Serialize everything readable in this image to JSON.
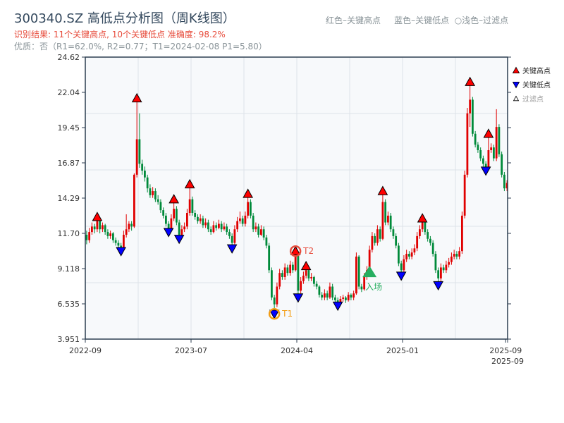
{
  "header": {
    "title": "300340.SZ 高低点分析图（周K线图）",
    "result": "识别结果: 11个关键高点, 10个关键低点  准确度: 98.2%",
    "quality": "优质：否（R1=62.0%, R2=0.77；T1=2024-02-08 P1=5.80）",
    "hint": "红色–关键高点     蓝色–关键低点  ○浅色–过滤点"
  },
  "colors": {
    "up": "#e00000",
    "down": "#008a3a",
    "high_marker": "#ff0000",
    "low_marker": "#0000ff",
    "t1": "#f39c12",
    "t2": "#e74c3c",
    "entry": "#27ae60",
    "axis": "#2c3e50",
    "plot_bg": "#f7f9fb",
    "grid": "#dde3e8"
  },
  "chart_data": {
    "type": "candlestick",
    "title": "300340.SZ 高低点分析图（周K线图）",
    "ylim": [
      3.951,
      24.62
    ],
    "y_ticks": [
      "3.951",
      "6.535",
      "9.118",
      "11.70",
      "14.29",
      "16.87",
      "19.45",
      "22.04",
      "24.62"
    ],
    "x_ticks": [
      {
        "index": 0,
        "label": "2022-09"
      },
      {
        "index": 40,
        "label": "2023-07"
      },
      {
        "index": 80,
        "label": "2024-04"
      },
      {
        "index": 120,
        "label": "2025-01"
      },
      {
        "index": 159,
        "label": "2025-09"
      },
      {
        "index": 160,
        "label": "2025-09"
      }
    ],
    "grid": true,
    "legend": {
      "placement": "top-right",
      "items": [
        {
          "label": "关键高点",
          "marker": "red-up-triangle"
        },
        {
          "label": "关键低点",
          "marker": "blue-down-triangle"
        },
        {
          "label": "过滤点",
          "marker": "hollow-up-triangle"
        }
      ]
    },
    "ohlc": [
      [
        11.6,
        11.9,
        10.9,
        11.2
      ],
      [
        11.2,
        12.1,
        11.0,
        11.8
      ],
      [
        11.8,
        12.5,
        11.6,
        12.2
      ],
      [
        12.2,
        12.4,
        11.7,
        12.0
      ],
      [
        12.0,
        12.9,
        11.8,
        12.6
      ],
      [
        12.6,
        12.8,
        11.7,
        12.0
      ],
      [
        12.0,
        12.5,
        11.8,
        12.3
      ],
      [
        12.3,
        12.4,
        11.6,
        11.8
      ],
      [
        11.8,
        12.0,
        11.3,
        11.5
      ],
      [
        11.5,
        11.9,
        11.3,
        11.7
      ],
      [
        11.7,
        11.8,
        11.0,
        11.2
      ],
      [
        11.2,
        11.4,
        10.8,
        11.0
      ],
      [
        11.0,
        11.2,
        10.6,
        10.8
      ],
      [
        10.8,
        11.0,
        10.4,
        10.7
      ],
      [
        10.7,
        11.9,
        10.6,
        11.6
      ],
      [
        11.6,
        13.1,
        11.4,
        12.0
      ],
      [
        12.0,
        12.6,
        11.8,
        12.4
      ],
      [
        12.4,
        12.6,
        11.9,
        12.2
      ],
      [
        12.2,
        16.1,
        12.1,
        16.0
      ],
      [
        16.0,
        21.6,
        15.8,
        18.6
      ],
      [
        18.6,
        20.5,
        16.5,
        16.8
      ],
      [
        16.8,
        17.1,
        16.0,
        16.3
      ],
      [
        16.3,
        16.6,
        15.5,
        15.8
      ],
      [
        15.8,
        16.0,
        14.7,
        15.0
      ],
      [
        15.0,
        15.3,
        14.3,
        14.5
      ],
      [
        14.5,
        15.1,
        14.3,
        14.8
      ],
      [
        14.8,
        15.0,
        14.0,
        14.2
      ],
      [
        14.2,
        14.5,
        13.8,
        14.0
      ],
      [
        14.0,
        14.2,
        13.2,
        13.4
      ],
      [
        13.4,
        13.6,
        12.8,
        13.0
      ],
      [
        13.0,
        13.2,
        12.2,
        12.4
      ],
      [
        12.4,
        12.6,
        11.8,
        12.0
      ],
      [
        12.0,
        13.1,
        11.9,
        12.8
      ],
      [
        12.8,
        14.2,
        12.6,
        13.5
      ],
      [
        13.5,
        13.7,
        12.3,
        12.5
      ],
      [
        12.5,
        12.7,
        11.3,
        11.6
      ],
      [
        11.6,
        12.3,
        11.5,
        12.0
      ],
      [
        12.0,
        12.5,
        11.8,
        12.2
      ],
      [
        12.2,
        13.5,
        12.0,
        13.2
      ],
      [
        13.2,
        15.3,
        13.0,
        14.2
      ],
      [
        14.2,
        14.4,
        13.0,
        13.2
      ],
      [
        13.2,
        13.4,
        12.7,
        12.9
      ],
      [
        12.9,
        13.1,
        12.4,
        12.6
      ],
      [
        12.6,
        13.1,
        12.4,
        12.8
      ],
      [
        12.8,
        13.0,
        12.1,
        12.3
      ],
      [
        12.3,
        12.8,
        12.1,
        12.5
      ],
      [
        12.5,
        12.7,
        11.8,
        12.0
      ],
      [
        12.0,
        12.2,
        11.6,
        11.8
      ],
      [
        11.8,
        12.6,
        11.7,
        12.3
      ],
      [
        12.3,
        12.5,
        11.9,
        12.1
      ],
      [
        12.1,
        12.7,
        12.0,
        12.4
      ],
      [
        12.4,
        12.6,
        11.8,
        12.0
      ],
      [
        12.0,
        12.5,
        11.9,
        12.2
      ],
      [
        12.2,
        12.4,
        11.6,
        11.8
      ],
      [
        11.8,
        12.0,
        11.3,
        11.5
      ],
      [
        11.5,
        11.7,
        10.6,
        11.0
      ],
      [
        11.0,
        12.3,
        10.9,
        12.0
      ],
      [
        12.0,
        12.9,
        11.8,
        12.6
      ],
      [
        12.6,
        13.3,
        12.4,
        12.8
      ],
      [
        12.8,
        13.0,
        12.2,
        12.4
      ],
      [
        12.4,
        13.3,
        12.2,
        13.0
      ],
      [
        13.0,
        14.6,
        12.8,
        14.0
      ],
      [
        14.0,
        14.2,
        12.8,
        13.0
      ],
      [
        13.0,
        13.2,
        11.8,
        12.0
      ],
      [
        12.0,
        12.5,
        11.8,
        12.2
      ],
      [
        12.2,
        12.4,
        11.4,
        11.6
      ],
      [
        11.6,
        12.3,
        11.5,
        12.0
      ],
      [
        12.0,
        12.2,
        11.2,
        11.4
      ],
      [
        11.4,
        11.6,
        10.6,
        10.8
      ],
      [
        10.8,
        11.0,
        8.8,
        9.0
      ],
      [
        9.0,
        9.2,
        6.8,
        7.0
      ],
      [
        7.0,
        7.2,
        5.8,
        6.5
      ],
      [
        6.5,
        8.1,
        6.3,
        7.8
      ],
      [
        7.8,
        9.1,
        7.6,
        8.8
      ],
      [
        8.8,
        9.0,
        8.3,
        8.5
      ],
      [
        8.5,
        9.5,
        8.3,
        9.2
      ],
      [
        9.2,
        9.4,
        8.6,
        8.8
      ],
      [
        8.8,
        9.7,
        8.6,
        9.4
      ],
      [
        9.4,
        9.6,
        8.8,
        9.0
      ],
      [
        9.0,
        10.4,
        8.9,
        10.2
      ],
      [
        10.2,
        10.3,
        7.0,
        7.5
      ],
      [
        7.5,
        8.5,
        7.3,
        8.2
      ],
      [
        8.2,
        8.9,
        8.0,
        8.6
      ],
      [
        8.6,
        9.3,
        8.4,
        9.0
      ],
      [
        9.0,
        9.1,
        8.2,
        8.4
      ],
      [
        8.4,
        8.8,
        8.2,
        8.5
      ],
      [
        8.5,
        8.6,
        7.8,
        8.0
      ],
      [
        8.0,
        8.2,
        7.6,
        7.8
      ],
      [
        7.8,
        7.9,
        7.0,
        7.2
      ],
      [
        7.2,
        7.4,
        6.8,
        7.0
      ],
      [
        7.0,
        7.6,
        6.8,
        7.3
      ],
      [
        7.3,
        7.5,
        6.8,
        7.0
      ],
      [
        7.0,
        8.1,
        6.9,
        7.8
      ],
      [
        7.8,
        8.0,
        6.8,
        7.0
      ],
      [
        7.0,
        7.2,
        6.6,
        6.8
      ],
      [
        6.8,
        7.0,
        6.4,
        6.6
      ],
      [
        6.6,
        7.1,
        6.5,
        6.9
      ],
      [
        6.9,
        7.2,
        6.7,
        7.0
      ],
      [
        7.0,
        7.1,
        6.6,
        6.8
      ],
      [
        6.8,
        7.4,
        6.7,
        7.2
      ],
      [
        7.2,
        7.3,
        6.8,
        7.0
      ],
      [
        7.0,
        7.5,
        6.8,
        7.3
      ],
      [
        7.3,
        10.3,
        7.2,
        10.0
      ],
      [
        10.0,
        10.1,
        7.6,
        7.8
      ],
      [
        7.8,
        8.0,
        7.4,
        7.6
      ],
      [
        7.6,
        8.8,
        7.5,
        8.5
      ],
      [
        8.5,
        9.3,
        8.3,
        9.0
      ],
      [
        9.0,
        10.8,
        8.8,
        10.5
      ],
      [
        10.5,
        11.8,
        10.3,
        11.5
      ],
      [
        11.5,
        11.7,
        10.8,
        11.0
      ],
      [
        11.0,
        12.3,
        10.8,
        12.0
      ],
      [
        12.0,
        12.2,
        11.1,
        11.3
      ],
      [
        11.3,
        14.8,
        11.2,
        14.0
      ],
      [
        14.0,
        14.2,
        12.3,
        12.5
      ],
      [
        12.5,
        13.3,
        12.3,
        13.0
      ],
      [
        13.0,
        13.2,
        11.8,
        12.0
      ],
      [
        12.0,
        12.2,
        11.3,
        11.5
      ],
      [
        11.5,
        11.7,
        10.6,
        10.8
      ],
      [
        10.8,
        11.0,
        9.3,
        9.5
      ],
      [
        9.5,
        9.7,
        8.6,
        9.0
      ],
      [
        9.0,
        10.1,
        8.8,
        9.8
      ],
      [
        9.8,
        10.5,
        9.6,
        10.2
      ],
      [
        10.2,
        10.4,
        9.8,
        10.0
      ],
      [
        10.0,
        10.6,
        9.8,
        10.3
      ],
      [
        10.3,
        10.9,
        10.1,
        10.6
      ],
      [
        10.6,
        11.8,
        10.4,
        11.5
      ],
      [
        11.5,
        12.3,
        11.3,
        12.0
      ],
      [
        12.0,
        12.8,
        11.8,
        12.5
      ],
      [
        12.5,
        12.7,
        11.6,
        11.8
      ],
      [
        11.8,
        12.0,
        11.1,
        11.3
      ],
      [
        11.3,
        11.5,
        10.8,
        11.0
      ],
      [
        11.0,
        11.2,
        10.0,
        10.2
      ],
      [
        10.2,
        10.4,
        8.8,
        9.0
      ],
      [
        9.0,
        9.2,
        7.9,
        8.4
      ],
      [
        8.4,
        9.5,
        8.2,
        9.2
      ],
      [
        9.2,
        9.4,
        8.8,
        9.0
      ],
      [
        9.0,
        9.7,
        8.8,
        9.4
      ],
      [
        9.4,
        9.9,
        9.2,
        9.6
      ],
      [
        9.6,
        10.3,
        9.4,
        10.0
      ],
      [
        10.0,
        10.5,
        9.8,
        10.2
      ],
      [
        10.2,
        10.4,
        9.8,
        10.0
      ],
      [
        10.0,
        10.7,
        9.8,
        10.4
      ],
      [
        10.4,
        13.3,
        10.2,
        13.0
      ],
      [
        13.0,
        16.3,
        12.8,
        16.0
      ],
      [
        16.0,
        20.9,
        15.8,
        20.5
      ],
      [
        20.5,
        22.8,
        19.5,
        21.5
      ],
      [
        21.5,
        21.7,
        18.8,
        19.0
      ],
      [
        19.0,
        19.2,
        18.0,
        18.2
      ],
      [
        18.2,
        18.4,
        17.6,
        17.8
      ],
      [
        17.8,
        18.0,
        17.0,
        17.2
      ],
      [
        17.2,
        17.4,
        16.6,
        16.8
      ],
      [
        16.8,
        17.0,
        16.3,
        16.5
      ],
      [
        16.5,
        19.0,
        16.4,
        17.8
      ],
      [
        17.8,
        18.3,
        17.6,
        18.0
      ],
      [
        18.0,
        18.2,
        17.0,
        17.2
      ],
      [
        17.2,
        20.8,
        17.0,
        19.5
      ],
      [
        19.5,
        19.7,
        17.3,
        17.5
      ],
      [
        17.5,
        17.7,
        15.8,
        16.0
      ],
      [
        16.0,
        16.2,
        14.8,
        15.0
      ],
      [
        15.0,
        15.6,
        14.8,
        15.4
      ]
    ],
    "key_highs": [
      4,
      19,
      33,
      39,
      61,
      79,
      83,
      112,
      127,
      145,
      152
    ],
    "key_lows": [
      13,
      31,
      35,
      55,
      71,
      80,
      95,
      119,
      133,
      151
    ],
    "annotations": [
      {
        "label": "T1",
        "index": 71,
        "price": 5.8,
        "kind": "t1"
      },
      {
        "label": "T2",
        "index": 79,
        "price": 10.4,
        "kind": "t2"
      }
    ],
    "entry": {
      "label": "入场",
      "index": 107,
      "price": 8.8
    }
  }
}
